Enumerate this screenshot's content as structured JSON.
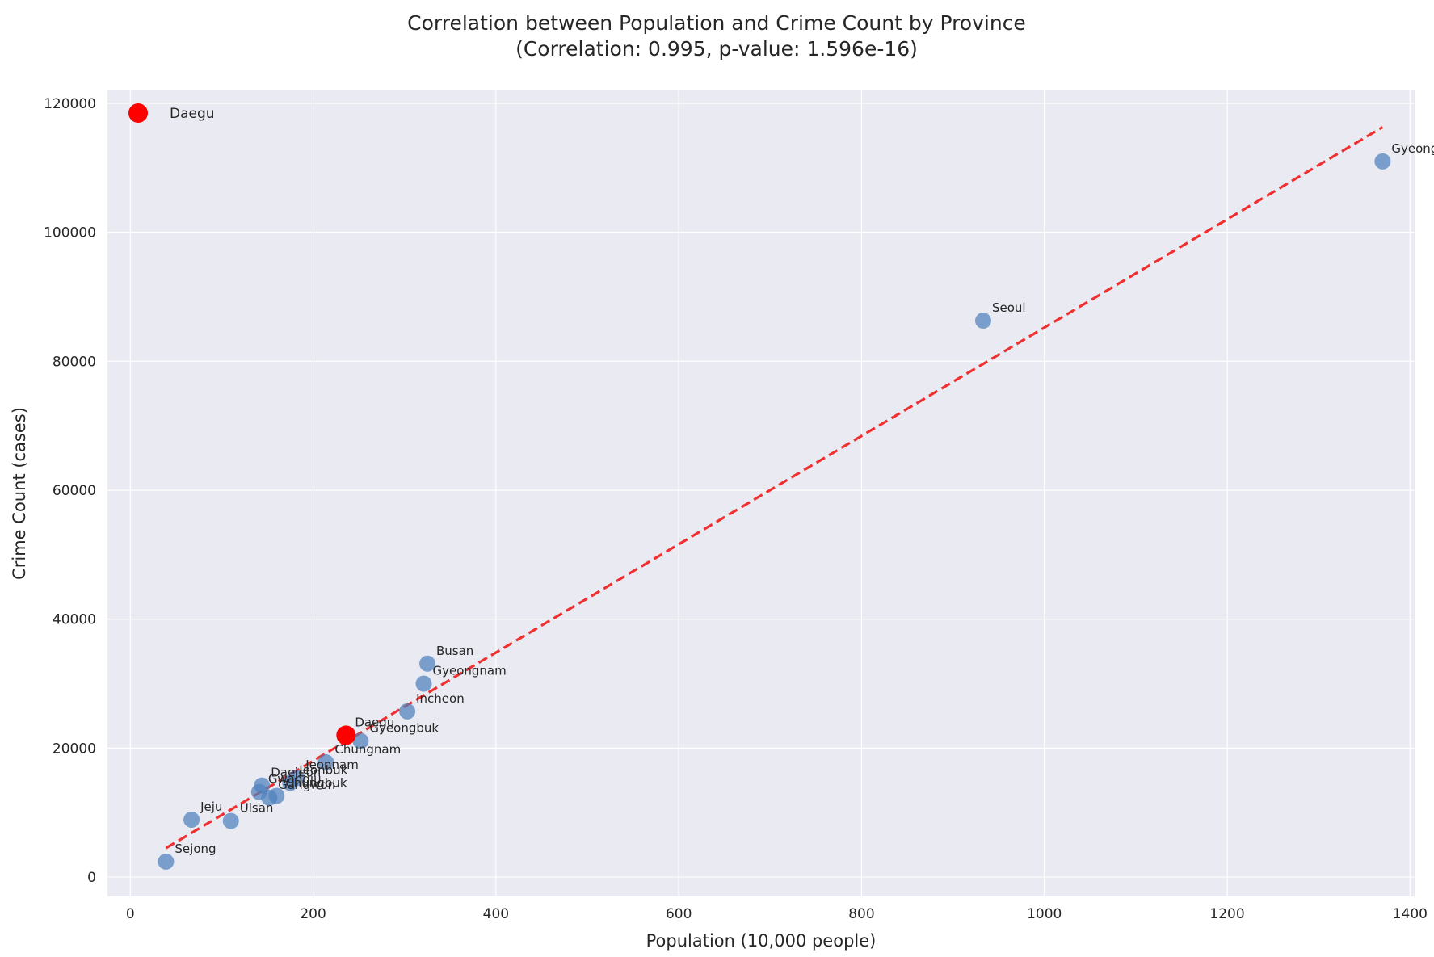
{
  "chart_data": {
    "type": "scatter",
    "title": "Correlation between Population and Crime Count by Province",
    "subtitle": "(Correlation: 0.995, p-value: 1.596e-16)",
    "xlabel": "Population (10,000 people)",
    "ylabel": "Crime Count (cases)",
    "xlim": [
      -25,
      1405
    ],
    "ylim": [
      -3000,
      122000
    ],
    "xticks": [
      0,
      200,
      400,
      600,
      800,
      1000,
      1200,
      1400
    ],
    "yticks": [
      0,
      20000,
      40000,
      60000,
      80000,
      100000,
      120000
    ],
    "grid": true,
    "legend": {
      "position": "top-left",
      "entries": [
        "Daegu"
      ]
    },
    "colors": {
      "points": "#4f81bd",
      "highlight": "#ff0000",
      "trend": "#f03030",
      "background": "#eaeaf2",
      "grid": "#ffffff"
    },
    "points": [
      {
        "name": "Gyeonggi",
        "x": 1370,
        "y": 111000
      },
      {
        "name": "Seoul",
        "x": 933,
        "y": 86300
      },
      {
        "name": "Busan",
        "x": 325,
        "y": 33100
      },
      {
        "name": "Gyeongnam",
        "x": 321,
        "y": 30000
      },
      {
        "name": "Incheon",
        "x": 303,
        "y": 25700
      },
      {
        "name": "Gyeongbuk",
        "x": 252,
        "y": 21100
      },
      {
        "name": "Daegu",
        "x": 236,
        "y": 22000,
        "highlight": true
      },
      {
        "name": "Chungnam",
        "x": 214,
        "y": 17800
      },
      {
        "name": "Jeonnam",
        "x": 182,
        "y": 15400
      },
      {
        "name": "Jeonbuk",
        "x": 175,
        "y": 14600
      },
      {
        "name": "Daejeon",
        "x": 144,
        "y": 14200
      },
      {
        "name": "Gwangju",
        "x": 141,
        "y": 13200
      },
      {
        "name": "Chungbuk",
        "x": 160,
        "y": 12600
      },
      {
        "name": "Gangwon",
        "x": 152,
        "y": 12300
      },
      {
        "name": "Jeju",
        "x": 67,
        "y": 8900
      },
      {
        "name": "Ulsan",
        "x": 110,
        "y": 8700
      },
      {
        "name": "Sejong",
        "x": 39,
        "y": 2400
      }
    ],
    "trendline": {
      "x": [
        39,
        1370
      ],
      "y": [
        4500,
        116300
      ]
    }
  }
}
